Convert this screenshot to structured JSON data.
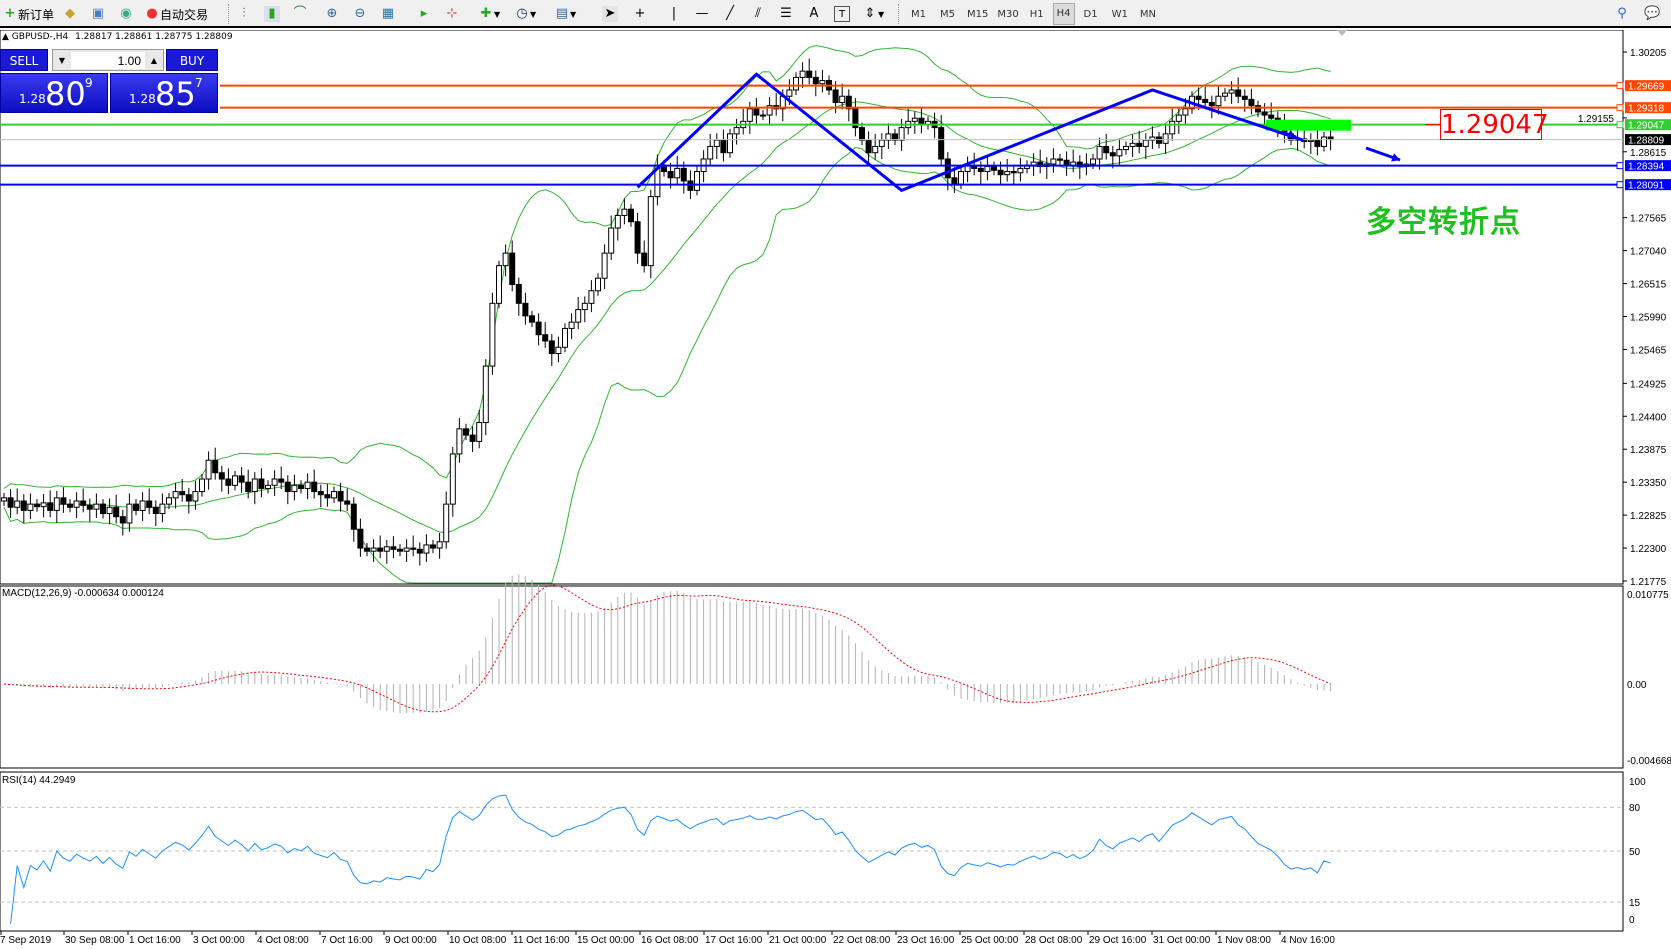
{
  "toolbar": {
    "new_order": "新订单",
    "auto_trading": "自动交易",
    "timeframes": [
      "M1",
      "M5",
      "M15",
      "M30",
      "H1",
      "H4",
      "D1",
      "W1",
      "MN"
    ],
    "active_timeframe": "H4"
  },
  "chart_header": {
    "symbol": "GBPUSD-,H4",
    "ohlc": "1.28817 1.28861 1.28775 1.28809"
  },
  "trade_panel": {
    "sell_label": "SELL",
    "buy_label": "BUY",
    "lot": "1.00",
    "sell_small": "1.28",
    "sell_big": "80",
    "sell_sup": "9",
    "buy_small": "1.28",
    "buy_big": "85",
    "buy_sup": "7"
  },
  "annotation": {
    "price_box": "1.29047",
    "note": "多空转折点"
  },
  "price_axis": {
    "ticks": [
      "1.30205",
      "1.29155",
      "1.28615",
      "1.27565",
      "1.27040",
      "1.26515",
      "1.25990",
      "1.25465",
      "1.24925",
      "1.24400",
      "1.23875",
      "1.23350",
      "1.22825",
      "1.22300",
      "1.21775"
    ]
  },
  "levels": [
    {
      "price": "1.29669",
      "color": "#ff4500"
    },
    {
      "price": "1.29318",
      "color": "#ff4500"
    },
    {
      "price": "1.29047",
      "color": "#32cd32"
    },
    {
      "price": "1.28809",
      "color": "#000000",
      "current": true
    },
    {
      "price": "1.28394",
      "color": "#0000ff"
    },
    {
      "price": "1.28091",
      "color": "#0000ff"
    }
  ],
  "macd": {
    "label": "MACD(12,26,9) -0.000634 0.000124",
    "ticks": [
      "0.010775",
      "0.00",
      "-0.004668"
    ]
  },
  "rsi": {
    "label": "RSI(14) 44.2949",
    "ticks": [
      "100",
      "80",
      "50",
      "15",
      "0"
    ]
  },
  "time_axis": [
    "7 Sep 2019",
    "30 Sep 08:00",
    "1 Oct 16:00",
    "3 Oct 00:00",
    "4 Oct 08:00",
    "7 Oct 16:00",
    "9 Oct 00:00",
    "10 Oct 08:00",
    "11 Oct 16:00",
    "15 Oct 00:00",
    "16 Oct 08:00",
    "17 Oct 16:00",
    "21 Oct 00:00",
    "22 Oct 08:00",
    "23 Oct 16:00",
    "25 Oct 00:00",
    "28 Oct 08:00",
    "29 Oct 16:00",
    "31 Oct 00:00",
    "1 Nov 08:00",
    "4 Nov 16:00"
  ],
  "chart_data": {
    "type": "candlestick",
    "symbol": "GBPUSD",
    "timeframe": "H4",
    "ylim": [
      1.21775,
      1.30205
    ],
    "indicators": [
      "Bollinger Bands",
      "MACD(12,26,9)",
      "RSI(14)"
    ],
    "colors": {
      "bands": "#2eb82e",
      "trend": "#0000ff",
      "macd_signal": "#ff0000",
      "rsi": "#1e90ff"
    },
    "close": [
      1.231,
      1.2295,
      1.2305,
      1.229,
      1.23,
      1.2296,
      1.2302,
      1.229,
      1.231,
      1.23,
      1.2295,
      1.2305,
      1.2298,
      1.2292,
      1.23,
      1.2285,
      1.2295,
      1.228,
      1.227,
      1.23,
      1.229,
      1.2305,
      1.2295,
      1.2285,
      1.23,
      1.231,
      1.232,
      1.2315,
      1.2305,
      1.232,
      1.234,
      1.237,
      1.235,
      1.234,
      1.233,
      1.2345,
      1.2335,
      1.232,
      1.234,
      1.2325,
      1.233,
      1.234,
      1.2335,
      1.232,
      1.233,
      1.2325,
      1.2335,
      1.232,
      1.2315,
      1.231,
      1.232,
      1.2305,
      1.23,
      1.226,
      1.223,
      1.2225,
      1.223,
      1.2225,
      1.2232,
      1.2228,
      1.2225,
      1.223,
      1.2228,
      1.2222,
      1.2235,
      1.223,
      1.224,
      1.23,
      1.238,
      1.242,
      1.241,
      1.24,
      1.243,
      1.252,
      1.262,
      1.268,
      1.27,
      1.265,
      1.262,
      1.26,
      1.259,
      1.257,
      1.256,
      1.254,
      1.255,
      1.258,
      1.259,
      1.261,
      1.262,
      1.264,
      1.266,
      1.27,
      1.274,
      1.276,
      1.277,
      1.275,
      1.27,
      1.268,
      1.279,
      1.284,
      1.283,
      1.282,
      1.2835,
      1.2815,
      1.28,
      1.283,
      1.285,
      1.287,
      1.288,
      1.286,
      1.289,
      1.29,
      1.291,
      1.293,
      1.292,
      1.292,
      1.2935,
      1.293,
      1.295,
      1.296,
      1.298,
      1.299,
      1.298,
      1.297,
      1.2975,
      1.296,
      1.294,
      1.295,
      1.293,
      1.29,
      1.288,
      1.286,
      1.287,
      1.288,
      1.289,
      1.288,
      1.29,
      1.291,
      1.2915,
      1.2905,
      1.291,
      1.29,
      1.285,
      1.282,
      1.281,
      1.283,
      1.284,
      1.2835,
      1.283,
      1.2838,
      1.2832,
      1.2825,
      1.283,
      1.2828,
      1.2835,
      1.284,
      1.2845,
      1.2838,
      1.2842,
      1.285,
      1.2848,
      1.284,
      1.2845,
      1.2838,
      1.2842,
      1.285,
      1.287,
      1.286,
      1.2855,
      1.2865,
      1.287,
      1.2875,
      1.287,
      1.288,
      1.2885,
      1.2875,
      1.289,
      1.291,
      1.292,
      1.293,
      1.295,
      1.2945,
      1.294,
      1.2935,
      1.295,
      1.2955,
      1.296,
      1.295,
      1.2945,
      1.2935,
      1.2925,
      1.292,
      1.2915,
      1.2905,
      1.289,
      1.288,
      1.2882,
      1.2878,
      1.288,
      1.287,
      1.2885,
      1.2881
    ],
    "trendline_prices": [
      1.2805,
      1.2985,
      1.28,
      1.296,
      1.288
    ]
  }
}
